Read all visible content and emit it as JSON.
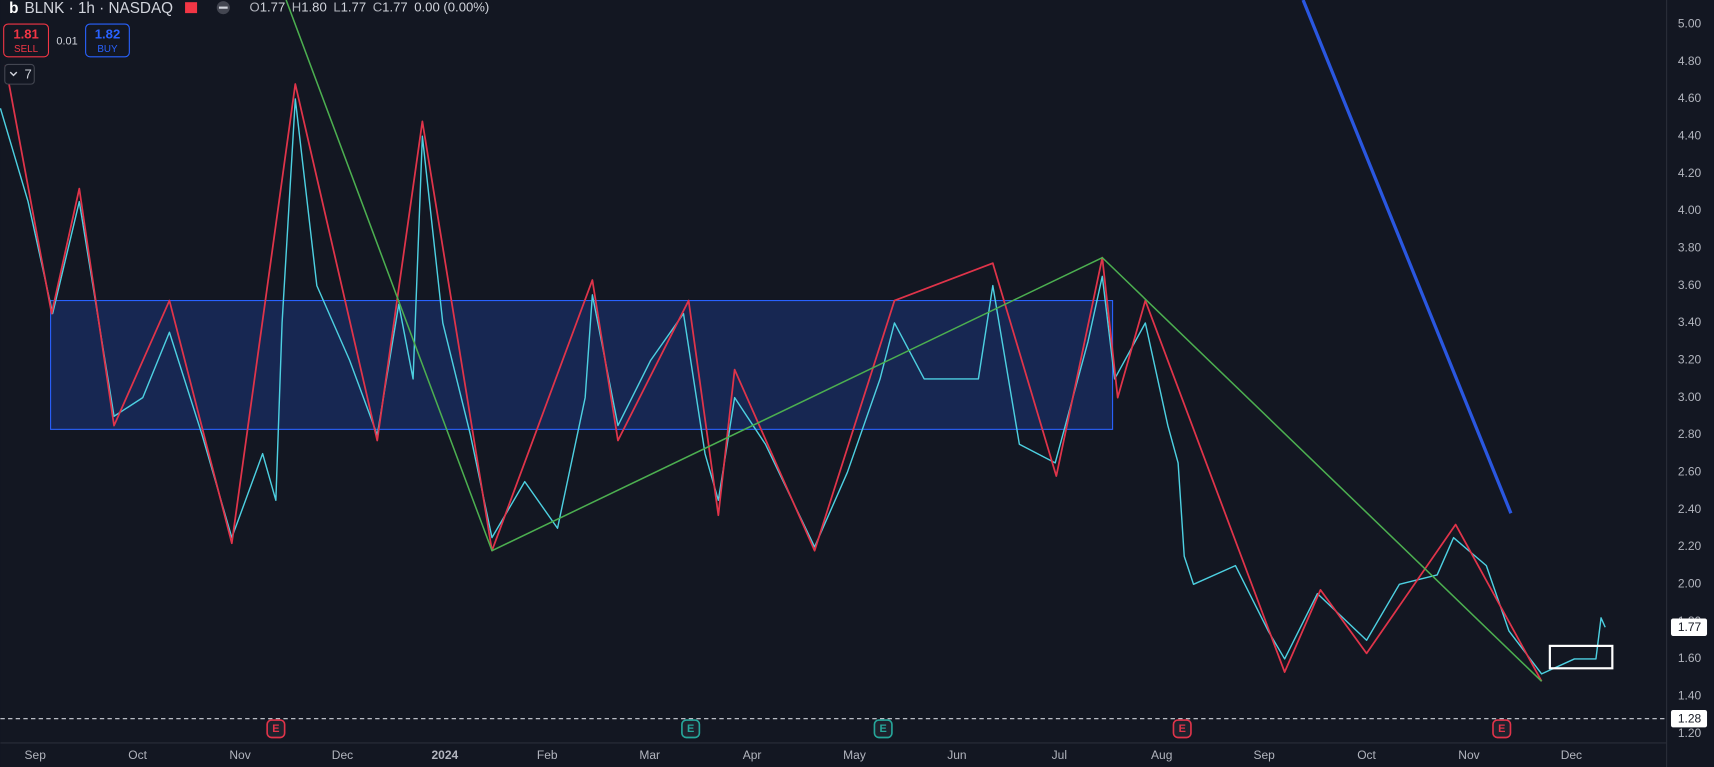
{
  "header": {
    "symbol": "BLNK · 1h · NASDAQ",
    "ohlc": [
      {
        "key": "O",
        "value": "1.77"
      },
      {
        "key": "H",
        "value": "1.80"
      },
      {
        "key": "L",
        "value": "1.77"
      },
      {
        "key": "C",
        "value": "1.77"
      }
    ],
    "change": "0.00 (0.00%)"
  },
  "trade": {
    "sell_price": "1.81",
    "sell_label": "SELL",
    "spread": "0.01",
    "buy_price": "1.82",
    "buy_label": "BUY"
  },
  "indicators_count": "7",
  "chart_data": {
    "type": "line",
    "color": "#4dd0e1",
    "x": [
      -0.34,
      -0.07,
      0.17,
      0.43,
      0.77,
      1.05,
      1.31,
      1.63,
      1.92,
      2.22,
      2.35,
      2.41,
      2.54,
      2.75,
      3.07,
      3.34,
      3.55,
      3.69,
      3.78,
      3.98,
      4.25,
      4.46,
      4.78,
      5.1,
      5.37,
      5.44,
      5.69,
      6.01,
      6.33,
      6.54,
      6.67,
      6.83,
      7.13,
      7.61,
      7.93,
      8.25,
      8.39,
      8.68,
      9.0,
      9.21,
      9.35,
      9.61,
      9.96,
      10.28,
      10.42,
      10.54,
      10.84,
      11.06,
      11.16,
      11.22,
      11.31,
      11.72,
      12.04,
      12.2,
      12.52,
      13.0,
      13.32,
      13.69,
      13.85,
      14.17,
      14.39,
      14.71,
      15.03,
      15.24,
      15.29,
      15.33
    ],
    "values": [
      4.55,
      4.05,
      3.45,
      4.05,
      2.9,
      3.0,
      3.35,
      2.8,
      2.25,
      2.7,
      2.45,
      3.4,
      4.6,
      3.6,
      3.2,
      2.8,
      3.5,
      3.1,
      4.4,
      3.4,
      2.8,
      2.25,
      2.55,
      2.3,
      3.0,
      3.55,
      2.85,
      3.2,
      3.45,
      2.7,
      2.45,
      3.0,
      2.75,
      2.2,
      2.6,
      3.1,
      3.4,
      3.1,
      3.1,
      3.1,
      3.6,
      2.75,
      2.65,
      3.3,
      3.65,
      3.1,
      3.4,
      2.85,
      2.65,
      2.15,
      2.0,
      2.1,
      1.75,
      1.6,
      1.95,
      1.7,
      2.0,
      2.05,
      2.25,
      2.1,
      1.75,
      1.52,
      1.6,
      1.6,
      1.82,
      1.77
    ],
    "zigzag": {
      "color": "#e0344a",
      "x": [
        -0.29,
        0.16,
        0.43,
        0.77,
        1.31,
        1.92,
        2.54,
        3.34,
        3.78,
        4.46,
        5.44,
        5.69,
        6.38,
        6.67,
        6.83,
        7.61,
        8.39,
        9.35,
        9.97,
        10.42,
        10.57,
        10.84,
        12.2,
        12.55,
        13.0,
        13.87,
        14.71
      ],
      "values": [
        4.78,
        3.45,
        4.12,
        2.85,
        3.52,
        2.22,
        4.68,
        2.77,
        4.48,
        2.18,
        3.63,
        2.77,
        3.52,
        2.37,
        3.15,
        2.18,
        3.52,
        3.72,
        2.58,
        3.75,
        3.0,
        3.52,
        1.53,
        1.97,
        1.63,
        2.32,
        1.48
      ]
    },
    "trendline": {
      "color": "#4caf50",
      "x": [
        2.45,
        4.46,
        10.42,
        14.71
      ],
      "values": [
        5.13,
        2.18,
        3.75,
        1.48
      ]
    },
    "ray": {
      "color": "#2a57e0",
      "x": [
        12.38,
        14.41
      ],
      "values": [
        5.13,
        2.38
      ]
    },
    "range_box": {
      "color": "#2962ff",
      "x": [
        0.15,
        10.52
      ],
      "values": [
        3.52,
        2.83
      ]
    },
    "marker_box": {
      "color": "#ffffff",
      "x": [
        14.79,
        15.4
      ],
      "values": [
        1.67,
        1.55
      ]
    },
    "last_price": {
      "value": 1.77,
      "label": "1.77"
    },
    "dashed_level": {
      "value": 1.28,
      "label": "1.28"
    },
    "earnings": {
      "label": "E",
      "x": [
        2.35,
        6.4,
        8.28,
        11.2,
        14.32
      ],
      "colors": [
        "#e0344a",
        "#26a69a",
        "#26a69a",
        "#e0344a",
        "#e0344a"
      ]
    },
    "xlim": [
      -0.34,
      15.93
    ],
    "ylim": [
      1.15,
      5.13
    ],
    "xticks": [
      {
        "value": 0,
        "label": "Sep"
      },
      {
        "value": 1,
        "label": "Oct"
      },
      {
        "value": 2,
        "label": "Nov"
      },
      {
        "value": 3,
        "label": "Dec"
      },
      {
        "value": 4,
        "label": "2024"
      },
      {
        "value": 5,
        "label": "Feb"
      },
      {
        "value": 6,
        "label": "Mar"
      },
      {
        "value": 7,
        "label": "Apr"
      },
      {
        "value": 8,
        "label": "May"
      },
      {
        "value": 9,
        "label": "Jun"
      },
      {
        "value": 10,
        "label": "Jul"
      },
      {
        "value": 11,
        "label": "Aug"
      },
      {
        "value": 12,
        "label": "Sep"
      },
      {
        "value": 13,
        "label": "Oct"
      },
      {
        "value": 14,
        "label": "Nov"
      },
      {
        "value": 15,
        "label": "Dec"
      }
    ],
    "yticks": [
      {
        "value": 1.2,
        "label": "1.20"
      },
      {
        "value": 1.4,
        "label": "1.40"
      },
      {
        "value": 1.6,
        "label": "1.60"
      },
      {
        "value": 1.8,
        "label": "1.80"
      },
      {
        "value": 2.0,
        "label": "2.00"
      },
      {
        "value": 2.2,
        "label": "2.20"
      },
      {
        "value": 2.4,
        "label": "2.40"
      },
      {
        "value": 2.6,
        "label": "2.60"
      },
      {
        "value": 2.8,
        "label": "2.80"
      },
      {
        "value": 3.0,
        "label": "3.00"
      },
      {
        "value": 3.2,
        "label": "3.20"
      },
      {
        "value": 3.4,
        "label": "3.40"
      },
      {
        "value": 3.6,
        "label": "3.60"
      },
      {
        "value": 3.8,
        "label": "3.80"
      },
      {
        "value": 4.0,
        "label": "4.00"
      },
      {
        "value": 4.2,
        "label": "4.20"
      },
      {
        "value": 4.4,
        "label": "4.40"
      },
      {
        "value": 4.6,
        "label": "4.60"
      },
      {
        "value": 4.8,
        "label": "4.80"
      },
      {
        "value": 5.0,
        "label": "5.00"
      }
    ]
  }
}
